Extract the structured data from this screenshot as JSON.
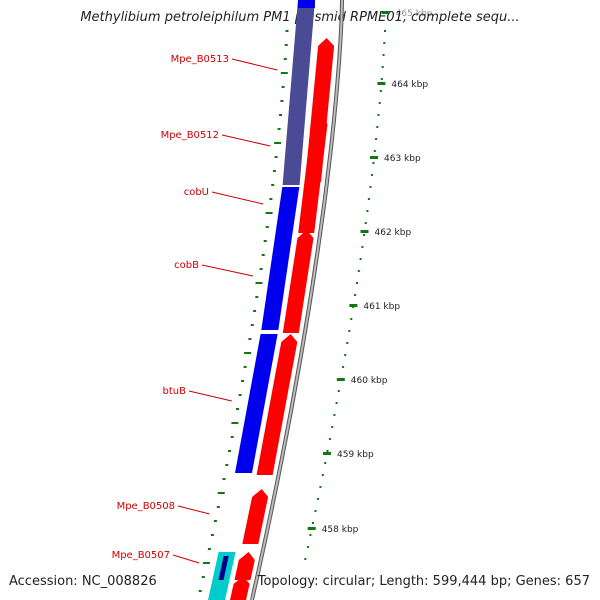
{
  "title": "Methylibium petroleiphilum PM1 plasmid RPME01, complete sequ...",
  "footer": {
    "accession": "Accession: NC_008826",
    "summary": "Topology: circular; Length: 599,444 bp; Genes: 657"
  },
  "scale": {
    "unit": "kbp",
    "labels": [
      "465 kbp",
      "464 kbp",
      "463 kbp",
      "462 kbp",
      "461 kbp",
      "460 kbp",
      "459 kbp",
      "458 kbp"
    ]
  },
  "genes": [
    {
      "name": "Mpe_B0513"
    },
    {
      "name": "Mpe_B0512"
    },
    {
      "name": "cobU"
    },
    {
      "name": "cobB"
    },
    {
      "name": "btuB"
    },
    {
      "name": "Mpe_B0508"
    },
    {
      "name": "Mpe_B0507"
    }
  ],
  "colors": {
    "gene_label": "#cc0000",
    "scale_tick": "#117711",
    "forward_strand": "#ff0000",
    "reverse_strand": "#0000ee",
    "reverse_strand_dark": "#4a4a95",
    "cog_cyan": "#00cccc",
    "backbone": "#888888"
  }
}
